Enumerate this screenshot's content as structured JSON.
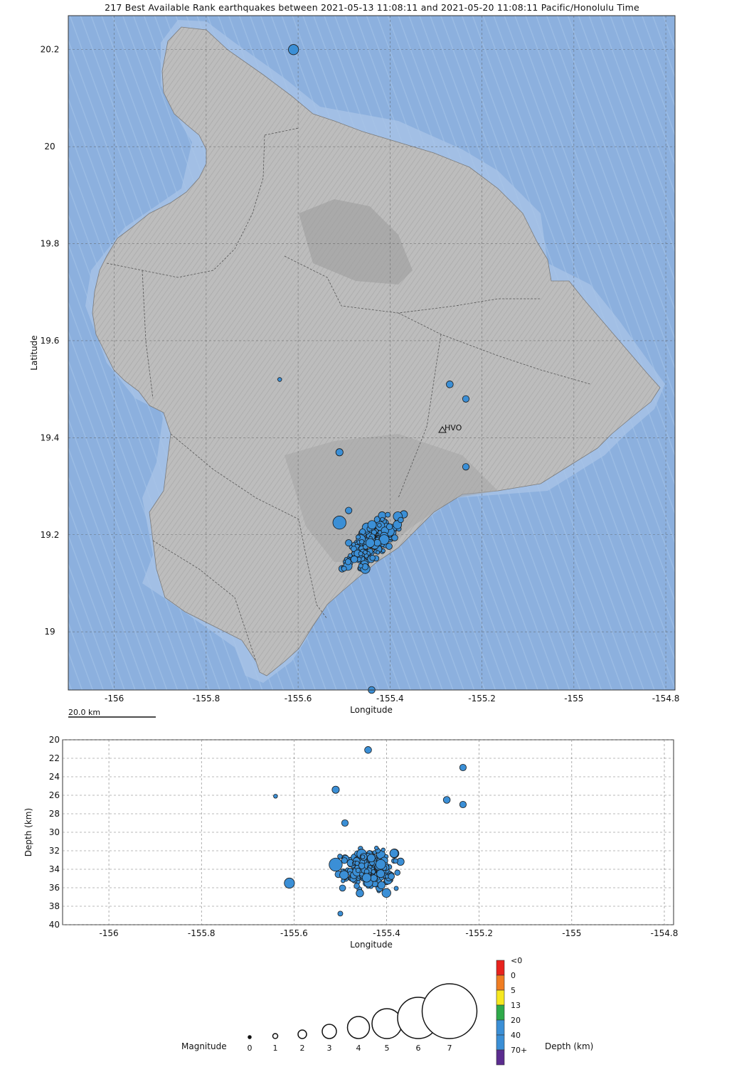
{
  "title": "217 Best Available Rank earthquakes between 2021-05-13 11:08:11 and 2021-05-20 11:08:11 Pacific/Honolulu Time",
  "map": {
    "xlabel": "Longitude",
    "ylabel": "Latitude",
    "scale_bar_label": "20.0 km",
    "station_label": "HVO",
    "xticks": [
      -156,
      -155.8,
      -155.6,
      -155.4,
      -155.2,
      -155,
      -154.8
    ],
    "xtick_labels": [
      "-156",
      "-155.8",
      "-155.6",
      "-155.4",
      "-155.2",
      "-155",
      "-154.8"
    ],
    "yticks": [
      20.2,
      20,
      19.8,
      19.6,
      19.4,
      19.2,
      19
    ],
    "ytick_labels": [
      "20.2",
      "20",
      "19.8",
      "19.6",
      "19.4",
      "19.2",
      "19"
    ],
    "lon_range": [
      -156.1,
      -154.78
    ],
    "lat_range": [
      18.88,
      20.27
    ],
    "colors": {
      "ocean": "#8aaedc",
      "land": "#b8b8b8",
      "quake": "#3b8fd6"
    }
  },
  "depth_panel": {
    "xlabel": "Longitude",
    "ylabel": "Depth (km)",
    "xtick_labels": [
      "-156",
      "-155.8",
      "-155.6",
      "-155.4",
      "-155.2",
      "-155",
      "-154.8"
    ],
    "ytick_labels": [
      "20",
      "22",
      "24",
      "26",
      "28",
      "30",
      "32",
      "34",
      "36",
      "38",
      "40"
    ],
    "depth_range": [
      20,
      40
    ]
  },
  "legend": {
    "magnitude_label": "Magnitude",
    "magnitudes": [
      "0",
      "1",
      "2",
      "3",
      "4",
      "5",
      "6",
      "7"
    ],
    "depth_label": "Depth (km)",
    "depth_classes": [
      {
        "label": "<0",
        "color": "#e8221d"
      },
      {
        "label": "0",
        "color": "#f07d22"
      },
      {
        "label": "5",
        "color": "#f6e81f"
      },
      {
        "label": "13",
        "color": "#2eaa4a"
      },
      {
        "label": "20",
        "color": "#3b8fd6"
      },
      {
        "label": "40",
        "color": "#3b8fd6"
      },
      {
        "label": "70+",
        "color": "#5b2c8f"
      }
    ]
  },
  "chart_data": {
    "type": "scatter",
    "title": "217 Best Available Rank earthquakes between 2021-05-13 11:08:11 and 2021-05-20 11:08:11 Pacific/Honolulu Time",
    "xlabel": "Longitude",
    "ylabel": "Latitude",
    "depth_ylabel": "Depth (km)",
    "xlim": [
      -156.1,
      -154.78
    ],
    "ylim": [
      18.88,
      20.27
    ],
    "depth_ylim": [
      20,
      40
    ],
    "isolated_events": [
      {
        "lon": -155.61,
        "lat": 20.2,
        "depth": 35.5,
        "mag": 2.6
      },
      {
        "lon": -155.64,
        "lat": 19.52,
        "depth": 26.1,
        "mag": 0.7
      },
      {
        "lon": -155.27,
        "lat": 19.51,
        "depth": 26.5,
        "mag": 1.6
      },
      {
        "lon": -155.235,
        "lat": 19.48,
        "depth": 27.0,
        "mag": 1.5
      },
      {
        "lon": -155.235,
        "lat": 19.34,
        "depth": 23.0,
        "mag": 1.5
      },
      {
        "lon": -155.51,
        "lat": 19.37,
        "depth": 25.4,
        "mag": 1.7
      },
      {
        "lon": -155.44,
        "lat": 18.88,
        "depth": 21.1,
        "mag": 1.6
      },
      {
        "lon": -155.51,
        "lat": 19.225,
        "depth": 33.5,
        "mag": 3.5
      },
      {
        "lon": -155.49,
        "lat": 19.25,
        "depth": 29.0,
        "mag": 1.5
      },
      {
        "lon": -155.5,
        "lat": 19.13,
        "depth": 38.8,
        "mag": 1.0
      }
    ],
    "main_cluster": {
      "lon_range": [
        -155.52,
        -155.37
      ],
      "lat_range": [
        19.13,
        19.25
      ],
      "depth_range": [
        28,
        39.5
      ],
      "count_approx": 205
    }
  }
}
